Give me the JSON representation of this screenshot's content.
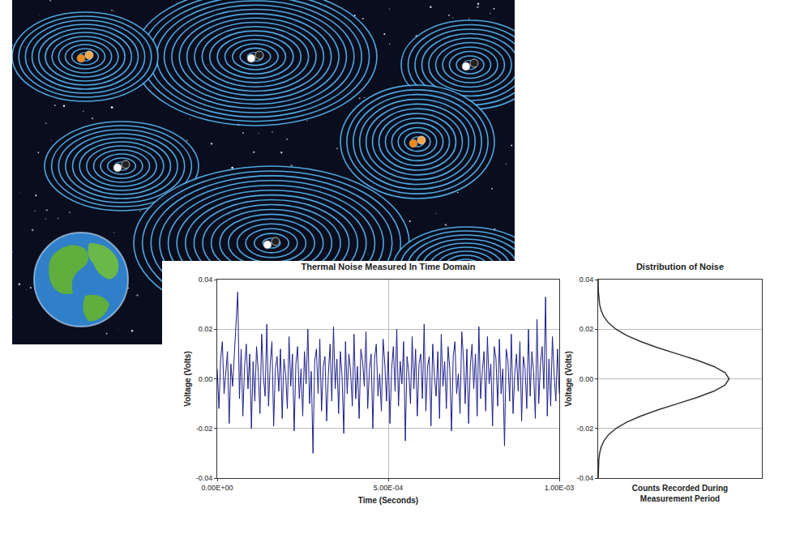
{
  "chart_data": [
    {
      "type": "line",
      "title": "Thermal Noise Measured In Time Domain",
      "x_label": "Time (Seconds)",
      "y_label": "Voltage (Volts)",
      "color": "#1c1f8a",
      "grid": true,
      "xlim": [
        0,
        0.001
      ],
      "ylim": [
        -0.04,
        0.04
      ],
      "xticks": [
        {
          "value": 0,
          "label": "0.00E+00"
        },
        {
          "value": 0.0005,
          "label": "5.00E-04"
        },
        {
          "value": 0.001,
          "label": "1.00E-03"
        }
      ],
      "yticks": [
        -0.04,
        -0.02,
        {
          "value": 0,
          "label": "0.00"
        },
        0.02,
        0.04
      ],
      "x": [
        0,
        5e-06,
        1e-05,
        1.5e-05,
        2e-05,
        2.5e-05,
        3e-05,
        3.5e-05,
        4e-05,
        4.5e-05,
        5e-05,
        5.5e-05,
        6e-05,
        6.5e-05,
        7e-05,
        7.5e-05,
        8e-05,
        8.5e-05,
        9e-05,
        9.5e-05,
        0.0001,
        0.000105,
        0.00011,
        0.000115,
        0.00012,
        0.000125,
        0.00013,
        0.000135,
        0.00014,
        0.000145,
        0.00015,
        0.000155,
        0.00016,
        0.000165,
        0.00017,
        0.000175,
        0.00018,
        0.000185,
        0.00019,
        0.000195,
        0.0002,
        0.000205,
        0.00021,
        0.000215,
        0.00022,
        0.000225,
        0.00023,
        0.000235,
        0.00024,
        0.000245,
        0.00025,
        0.000255,
        0.00026,
        0.000265,
        0.00027,
        0.000275,
        0.00028,
        0.000285,
        0.00029,
        0.000295,
        0.0003,
        0.000305,
        0.00031,
        0.000315,
        0.00032,
        0.000325,
        0.00033,
        0.000335,
        0.00034,
        0.000345,
        0.00035,
        0.000355,
        0.00036,
        0.000365,
        0.00037,
        0.000375,
        0.00038,
        0.000385,
        0.00039,
        0.000395,
        0.0004,
        0.000405,
        0.00041,
        0.000415,
        0.00042,
        0.000425,
        0.00043,
        0.000435,
        0.00044,
        0.000445,
        0.00045,
        0.000455,
        0.00046,
        0.000465,
        0.00047,
        0.000475,
        0.00048,
        0.000485,
        0.00049,
        0.000495,
        0.0005,
        0.000505,
        0.00051,
        0.000515,
        0.00052,
        0.000525,
        0.00053,
        0.000535,
        0.00054,
        0.000545,
        0.00055,
        0.000555,
        0.00056,
        0.000565,
        0.00057,
        0.000575,
        0.00058,
        0.000585,
        0.00059,
        0.000595,
        0.0006,
        0.000605,
        0.00061,
        0.000615,
        0.00062,
        0.000625,
        0.00063,
        0.000635,
        0.00064,
        0.000645,
        0.00065,
        0.000655,
        0.00066,
        0.000665,
        0.00067,
        0.000675,
        0.00068,
        0.000685,
        0.00069,
        0.000695,
        0.0007,
        0.000705,
        0.00071,
        0.000715,
        0.00072,
        0.000725,
        0.00073,
        0.000735,
        0.00074,
        0.000745,
        0.00075,
        0.000755,
        0.00076,
        0.000765,
        0.00077,
        0.000775,
        0.00078,
        0.000785,
        0.00079,
        0.000795,
        0.0008,
        0.000805,
        0.00081,
        0.000815,
        0.00082,
        0.000825,
        0.00083,
        0.000835,
        0.00084,
        0.000845,
        0.00085,
        0.000855,
        0.00086,
        0.000865,
        0.00087,
        0.000875,
        0.00088,
        0.000885,
        0.00089,
        0.000895,
        0.0009,
        0.000905,
        0.00091,
        0.000915,
        0.00092,
        0.000925,
        0.00093,
        0.000935,
        0.00094,
        0.000945,
        0.00095,
        0.000955,
        0.00096,
        0.000965,
        0.00097,
        0.000975,
        0.00098,
        0.000985,
        0.00099,
        0.000995,
        0.001
      ],
      "values": [
        0.004,
        -0.012,
        0.008,
        0.015,
        -0.006,
        0.002,
        0.011,
        -0.018,
        0.006,
        -0.003,
        0.009,
        0.019,
        0.035,
        -0.008,
        0.012,
        -0.015,
        0.005,
        0.014,
        -0.004,
        0.01,
        -0.02,
        0.007,
        -0.009,
        0.013,
        0.003,
        -0.014,
        0.018,
        0.001,
        -0.007,
        0.022,
        -0.011,
        0.006,
        0.015,
        -0.019,
        0.004,
        0.009,
        -0.005,
        0.012,
        -0.016,
        0.008,
        0.002,
        -0.012,
        0.017,
        -0.003,
        0.01,
        -0.021,
        0.006,
        0.013,
        -0.008,
        0.004,
        -0.015,
        0.011,
        -0.002,
        0.02,
        -0.01,
        0.003,
        -0.03,
        0.007,
        0.012,
        -0.006,
        0.016,
        -0.013,
        0.005,
        0.009,
        -0.017,
        0.002,
        0.014,
        -0.009,
        0.021,
        -0.004,
        0.008,
        -0.014,
        0.011,
        0.001,
        -0.022,
        0.015,
        -0.006,
        0.01,
        0.003,
        -0.011,
        0.018,
        -0.008,
        0.005,
        -0.016,
        0.012,
        0.007,
        -0.003,
        0.019,
        -0.012,
        0.004,
        0.01,
        -0.02,
        0.008,
        0.014,
        -0.007,
        0.002,
        -0.013,
        0.016,
        0.006,
        -0.009,
        0.011,
        -0.018,
        0.004,
        0.013,
        -0.005,
        0.02,
        -0.011,
        0.007,
        -0.002,
        0.015,
        -0.025,
        0.009,
        0.003,
        -0.01,
        0.017,
        -0.004,
        0.012,
        -0.015,
        0.006,
        0.01,
        -0.008,
        0.022,
        -0.013,
        0.005,
        0.009,
        -0.019,
        0.014,
        0.001,
        -0.007,
        0.011,
        -0.016,
        0.018,
        -0.003,
        0.007,
        -0.012,
        0.013,
        0.004,
        -0.021,
        0.009,
        0.015,
        -0.006,
        0.002,
        -0.014,
        0.019,
        0.008,
        -0.01,
        0.012,
        -0.018,
        0.005,
        0.014,
        -0.004,
        0.01,
        -0.015,
        0.021,
        -0.008,
        0.003,
        0.011,
        -0.013,
        0.017,
        -0.002,
        0.006,
        -0.019,
        0.013,
        0.008,
        -0.011,
        0.016,
        -0.006,
        0.004,
        -0.027,
        0.012,
        0.007,
        -0.009,
        0.018,
        -0.014,
        0.002,
        0.01,
        -0.005,
        0.015,
        -0.017,
        0.009,
        0.004,
        -0.012,
        0.02,
        -0.007,
        0.011,
        0.003,
        -0.016,
        0.024,
        -0.01,
        0.006,
        0.013,
        -0.004,
        0.033,
        -0.015,
        0.008,
        -0.011,
        0.017,
        0.002,
        -0.009,
        0.012,
        -0.006
      ]
    },
    {
      "type": "line",
      "title": "Distribution of Noise",
      "x_label": "Counts Recorded During Measurement Period",
      "y_label": "Voltage (Volts)",
      "color": "#333333",
      "grid": true,
      "tick_labels": "y",
      "xlim": [
        0,
        100
      ],
      "ylim": [
        -0.04,
        0.04
      ],
      "yticks": [
        -0.04,
        -0.02,
        {
          "value": 0,
          "label": "0.00"
        },
        0.02,
        0.04
      ],
      "x": [
        0.03,
        0.07,
        0.17,
        0.41,
        0.89,
        1.82,
        3.51,
        6.37,
        10.83,
        17.3,
        25.97,
        36.6,
        48.5,
        60.4,
        70.6,
        77.5,
        80,
        77.5,
        70.6,
        60.4,
        48.5,
        36.6,
        25.97,
        17.3,
        10.83,
        6.37,
        3.51,
        1.82,
        0.89,
        0.41,
        0.17,
        0.07,
        0.03
      ],
      "values": [
        -0.04,
        -0.0375,
        -0.035,
        -0.0325,
        -0.03,
        -0.0275,
        -0.025,
        -0.0225,
        -0.02,
        -0.0175,
        -0.015,
        -0.0125,
        -0.01,
        -0.0075,
        -0.005,
        -0.0025,
        0,
        0.0025,
        0.005,
        0.0075,
        0.01,
        0.0125,
        0.015,
        0.0175,
        0.02,
        0.0225,
        0.025,
        0.0275,
        0.03,
        0.0325,
        0.035,
        0.0375,
        0.04
      ]
    }
  ]
}
